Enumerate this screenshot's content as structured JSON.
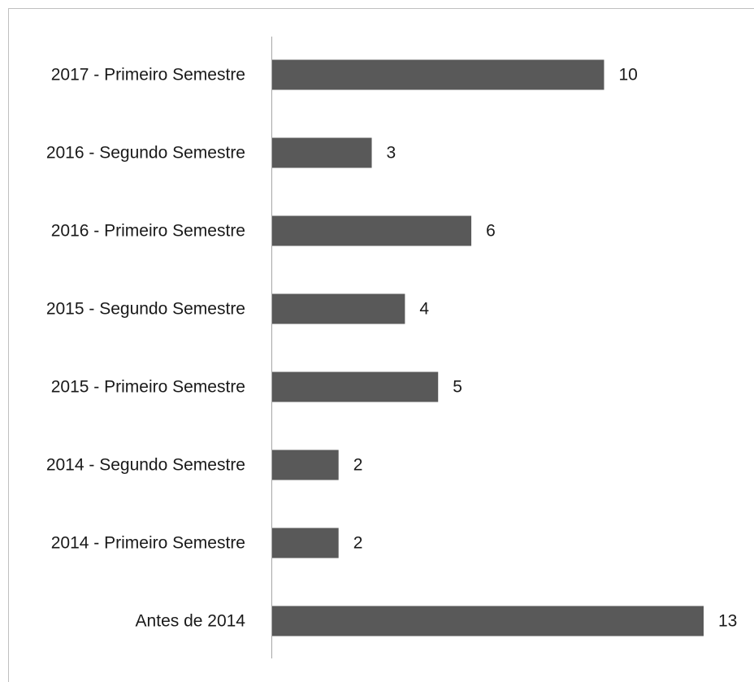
{
  "chart_data": {
    "type": "barh",
    "categories": [
      "2017 - Primeiro Semestre",
      "2016 - Segundo Semestre",
      "2016 - Primeiro Semestre",
      "2015 - Segundo Semestre",
      "2015 - Primeiro Semestre",
      "2014 - Segundo Semestre",
      "2014 - Primeiro Semestre",
      "Antes de 2014"
    ],
    "values": [
      10,
      3,
      6,
      4,
      5,
      2,
      2,
      13
    ],
    "color": "#595959"
  }
}
